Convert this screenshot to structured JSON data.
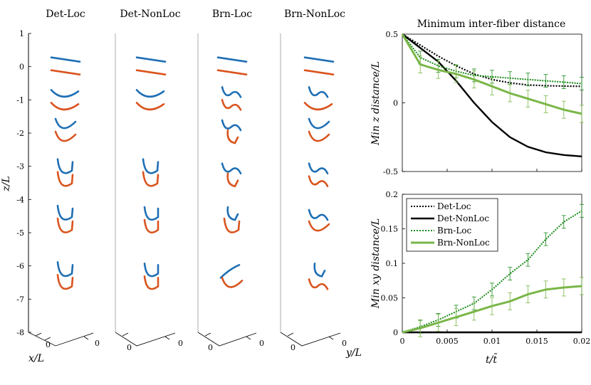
{
  "colors": {
    "blue": "#1f6fb4",
    "orange": "#d9541e",
    "det_loc": "#000000",
    "det_nonloc": "#000000",
    "brn_loc": "#1a8a1a",
    "brn_nonloc": "#7ab648",
    "axis": "#000000",
    "gray_axis": "#888888"
  },
  "chart_data": [
    {
      "type": "line",
      "panel": "fiber-snapshots",
      "titles": [
        "Det-Loc",
        "Det-NonLoc",
        "Brn-Loc",
        "Brn-NonLoc"
      ],
      "zlabel": "z/L",
      "xlabel": "x/L",
      "ylabel": "y/L",
      "zlim": [
        -8,
        1
      ],
      "zticks": [
        "1",
        "0",
        "-1",
        "-2",
        "-3",
        "-4",
        "-5",
        "-6",
        "-7",
        "-8"
      ],
      "xtick": "0",
      "ytick": "0",
      "fibers": [
        {
          "z": 0.0,
          "shapes": [
            [
              "flat",
              "flat"
            ],
            [
              "flat",
              "flat"
            ],
            [
              "flat",
              "flat"
            ],
            [
              "flat",
              "flat"
            ]
          ]
        },
        {
          "z": -1.0,
          "shapes": [
            [
              "cup-shallow",
              "cup-shallow"
            ],
            [
              "cup-shallow",
              "cup-shallow"
            ],
            [
              "wavy",
              "wavy"
            ],
            [
              "wavy",
              "cup-shallow"
            ]
          ]
        },
        {
          "z": -2.0,
          "shapes": [
            [
              "cup",
              "cup"
            ],
            [
              "none",
              "none"
            ],
            [
              "wavy",
              "hook"
            ],
            [
              "cup",
              "cup"
            ]
          ]
        },
        {
          "z": -3.3,
          "shapes": [
            [
              "u",
              "u"
            ],
            [
              "u",
              "u"
            ],
            [
              "wavy",
              "hook"
            ],
            [
              "wavy",
              "wavy"
            ]
          ]
        },
        {
          "z": -4.7,
          "shapes": [
            [
              "u",
              "u"
            ],
            [
              "u-overlap",
              "u-overlap"
            ],
            [
              "hook",
              "u"
            ],
            [
              "wavy",
              "cup"
            ]
          ]
        },
        {
          "z": -6.4,
          "shapes": [
            [
              "u",
              "u"
            ],
            [
              "u-overlap",
              "u-overlap"
            ],
            [
              "diag",
              "cup"
            ],
            [
              "hook",
              "wavy"
            ]
          ]
        }
      ]
    },
    {
      "type": "line",
      "panel": "min-z",
      "title": "Minimum inter-fiber distance",
      "ylabel": "Min z distance/L",
      "xlim": [
        0,
        0.02
      ],
      "ylim": [
        -0.5,
        0.5
      ],
      "yticks": [
        "0.5",
        "0",
        "-0.5"
      ],
      "series": [
        {
          "name": "Det-Loc",
          "x": [
            0,
            0.002,
            0.004,
            0.006,
            0.008,
            0.01,
            0.012,
            0.014,
            0.016,
            0.018,
            0.02
          ],
          "values": [
            0.5,
            0.42,
            0.34,
            0.27,
            0.21,
            0.17,
            0.145,
            0.13,
            0.125,
            0.122,
            0.12
          ]
        },
        {
          "name": "Det-NonLoc",
          "x": [
            0,
            0.002,
            0.004,
            0.006,
            0.008,
            0.01,
            0.012,
            0.014,
            0.016,
            0.018,
            0.02
          ],
          "values": [
            0.5,
            0.4,
            0.3,
            0.16,
            0.0,
            -0.14,
            -0.25,
            -0.32,
            -0.36,
            -0.38,
            -0.39
          ]
        },
        {
          "name": "Brn-Loc",
          "x": [
            0,
            0.002,
            0.004,
            0.006,
            0.008,
            0.01,
            0.012,
            0.014,
            0.016,
            0.018,
            0.02
          ],
          "values": [
            0.5,
            0.33,
            0.27,
            0.23,
            0.2,
            0.19,
            0.18,
            0.17,
            0.16,
            0.15,
            0.14
          ]
        },
        {
          "name": "Brn-NonLoc",
          "x": [
            0,
            0.002,
            0.004,
            0.006,
            0.008,
            0.01,
            0.012,
            0.014,
            0.016,
            0.018,
            0.02
          ],
          "values": [
            0.5,
            0.28,
            0.24,
            0.21,
            0.17,
            0.12,
            0.07,
            0.03,
            -0.01,
            -0.05,
            -0.08
          ]
        }
      ]
    },
    {
      "type": "line",
      "panel": "min-xy",
      "ylabel": "Min xy distance/L",
      "xlabel": "t/t̄",
      "xlim": [
        0,
        0.02
      ],
      "ylim": [
        0,
        0.2
      ],
      "xticks": [
        "0",
        "0.005",
        "0.01",
        "0.015",
        "0.02"
      ],
      "yticks": [
        "0.2",
        "0.15",
        "0.1",
        "0.05",
        "0"
      ],
      "legend": [
        "Det-Loc",
        "Det-NonLoc",
        "Brn-Loc",
        "Brn-NonLoc"
      ],
      "legend_position": "top-left",
      "series": [
        {
          "name": "Det-Loc",
          "x": [
            0,
            0.02
          ],
          "values": [
            0,
            0
          ]
        },
        {
          "name": "Det-NonLoc",
          "x": [
            0,
            0.02
          ],
          "values": [
            0,
            0
          ]
        },
        {
          "name": "Brn-Loc",
          "x": [
            0,
            0.002,
            0.004,
            0.006,
            0.008,
            0.01,
            0.012,
            0.014,
            0.016,
            0.018,
            0.02
          ],
          "values": [
            0,
            0.008,
            0.018,
            0.03,
            0.042,
            0.062,
            0.085,
            0.105,
            0.135,
            0.16,
            0.176
          ]
        },
        {
          "name": "Brn-NonLoc",
          "x": [
            0,
            0.002,
            0.004,
            0.006,
            0.008,
            0.01,
            0.012,
            0.014,
            0.016,
            0.018,
            0.02
          ],
          "values": [
            0,
            0.006,
            0.014,
            0.022,
            0.03,
            0.038,
            0.045,
            0.055,
            0.062,
            0.065,
            0.067
          ]
        }
      ]
    }
  ]
}
